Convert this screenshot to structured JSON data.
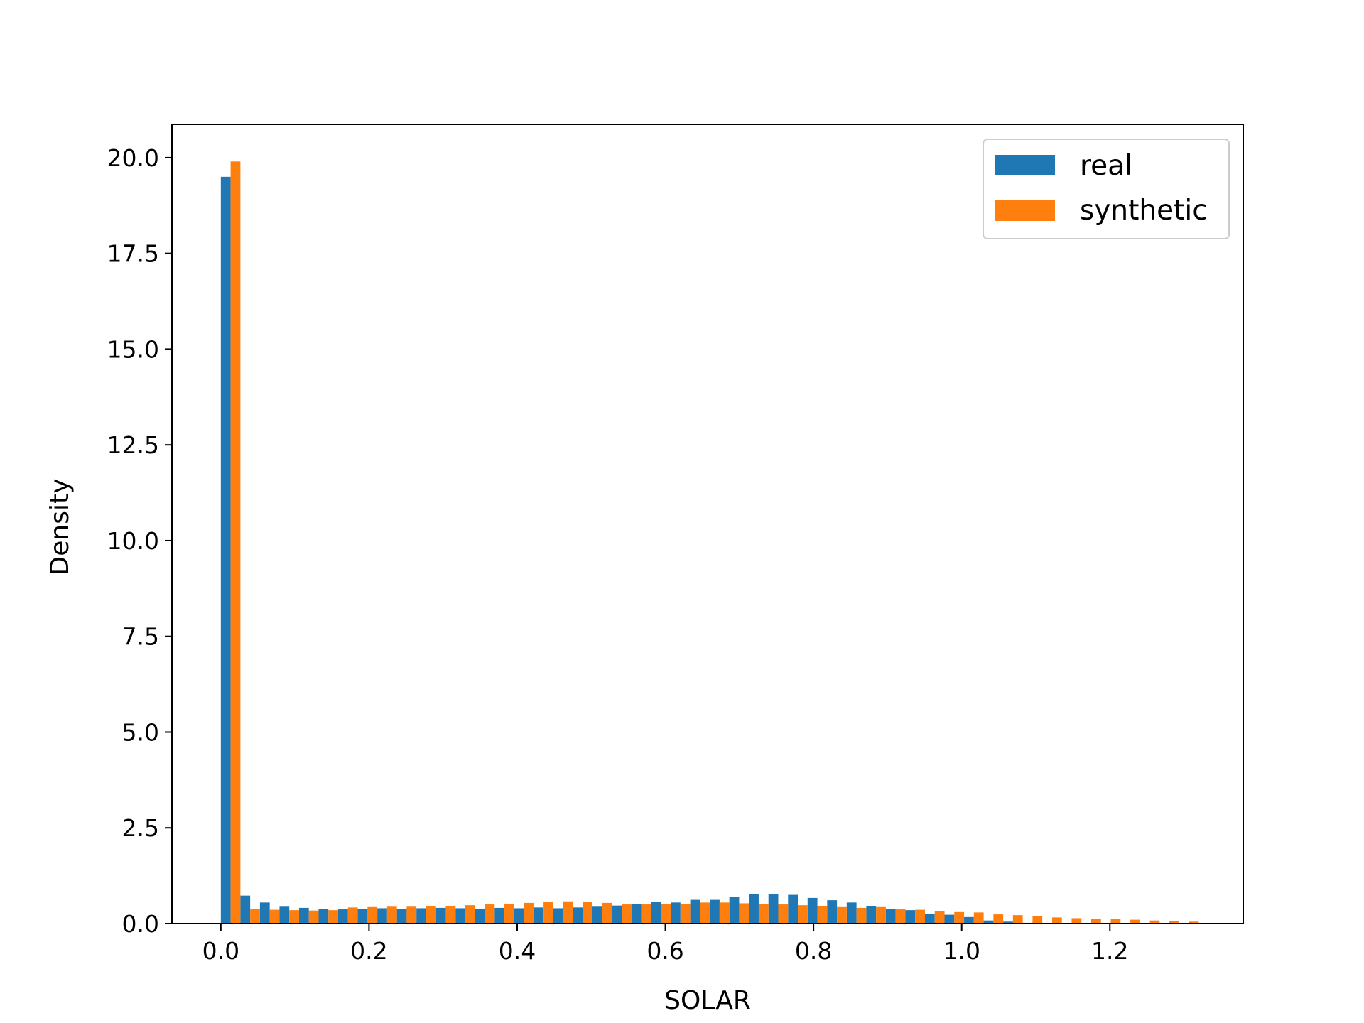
{
  "chart_data": {
    "type": "bar",
    "title": "",
    "xlabel": "SOLAR",
    "ylabel": "Density",
    "xlim": [
      -0.066,
      1.38
    ],
    "ylim": [
      0,
      20.87
    ],
    "bin_start": 0.0,
    "bin_width": 0.0264,
    "x_ticks": [
      {
        "value": 0.0,
        "label": "0.0"
      },
      {
        "value": 0.2,
        "label": "0.2"
      },
      {
        "value": 0.4,
        "label": "0.4"
      },
      {
        "value": 0.6,
        "label": "0.6"
      },
      {
        "value": 0.8,
        "label": "0.8"
      },
      {
        "value": 1.0,
        "label": "1.0"
      },
      {
        "value": 1.2,
        "label": "1.2"
      }
    ],
    "y_ticks": [
      {
        "value": 0.0,
        "label": "0.0"
      },
      {
        "value": 2.5,
        "label": "2.5"
      },
      {
        "value": 5.0,
        "label": "5.0"
      },
      {
        "value": 7.5,
        "label": "7.5"
      },
      {
        "value": 10.0,
        "label": "10.0"
      },
      {
        "value": 12.5,
        "label": "12.5"
      },
      {
        "value": 15.0,
        "label": "15.0"
      },
      {
        "value": 17.5,
        "label": "17.5"
      },
      {
        "value": 20.0,
        "label": "20.0"
      }
    ],
    "grid": false,
    "legend": {
      "placement": "top-right"
    },
    "series": [
      {
        "name": "real",
        "color": "#1f77b4",
        "values": [
          19.5,
          0.73,
          0.55,
          0.44,
          0.41,
          0.38,
          0.37,
          0.38,
          0.4,
          0.38,
          0.4,
          0.41,
          0.4,
          0.39,
          0.41,
          0.4,
          0.42,
          0.4,
          0.42,
          0.44,
          0.47,
          0.52,
          0.57,
          0.55,
          0.62,
          0.62,
          0.7,
          0.77,
          0.76,
          0.75,
          0.67,
          0.61,
          0.55,
          0.46,
          0.39,
          0.35,
          0.26,
          0.23,
          0.17,
          0.08,
          0.05,
          0.02,
          0.01,
          0.01,
          0.01,
          0.01,
          0.005,
          0.005,
          0.005,
          0.005
        ]
      },
      {
        "name": "synthetic",
        "color": "#ff7f0e",
        "values": [
          19.9,
          0.38,
          0.36,
          0.35,
          0.34,
          0.35,
          0.42,
          0.43,
          0.44,
          0.44,
          0.46,
          0.46,
          0.48,
          0.5,
          0.52,
          0.54,
          0.56,
          0.58,
          0.56,
          0.54,
          0.5,
          0.5,
          0.52,
          0.52,
          0.55,
          0.55,
          0.53,
          0.52,
          0.5,
          0.48,
          0.46,
          0.43,
          0.41,
          0.43,
          0.37,
          0.36,
          0.33,
          0.3,
          0.29,
          0.24,
          0.22,
          0.19,
          0.16,
          0.14,
          0.13,
          0.12,
          0.1,
          0.08,
          0.07,
          0.05
        ]
      }
    ]
  }
}
